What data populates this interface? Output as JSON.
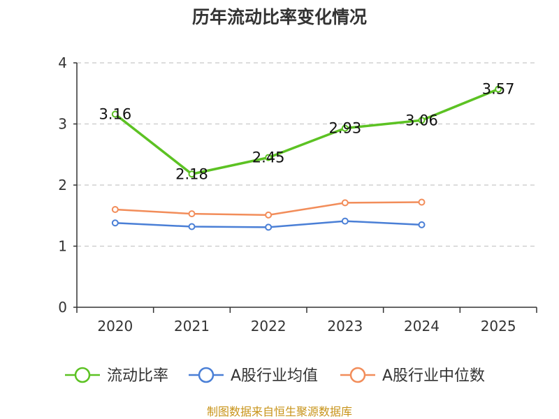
{
  "chart_data": {
    "type": "line",
    "title": "历年流动比率变化情况",
    "categories": [
      "2020",
      "2021",
      "2022",
      "2023",
      "2024",
      "2025"
    ],
    "ylim": [
      0,
      4
    ],
    "yticks": [
      0,
      1,
      2,
      3,
      4
    ],
    "grid": true,
    "legend_position": "bottom",
    "series": [
      {
        "name": "流动比率",
        "color": "#5cc223",
        "values": [
          3.16,
          2.18,
          2.45,
          2.93,
          3.06,
          3.57
        ],
        "show_labels": true
      },
      {
        "name": "A股行业均值",
        "color": "#4a7fd6",
        "values": [
          1.38,
          1.32,
          1.31,
          1.41,
          1.35,
          null
        ],
        "show_labels": false
      },
      {
        "name": "A股行业中位数",
        "color": "#f28d5a",
        "values": [
          1.6,
          1.53,
          1.51,
          1.71,
          1.72,
          null
        ],
        "show_labels": false
      }
    ],
    "data_labels": [
      "3.16",
      "2.18",
      "2.45",
      "2.93",
      "3.06",
      "3.57"
    ],
    "source": "制图数据来自恒生聚源数据库"
  }
}
